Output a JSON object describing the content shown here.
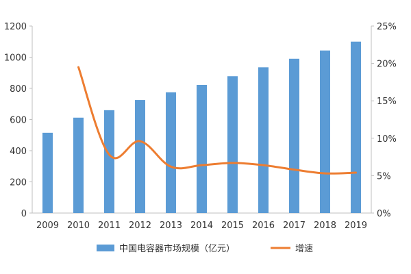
{
  "chart_data": {
    "type": "bar+line",
    "categories": [
      "2009",
      "2010",
      "2011",
      "2012",
      "2013",
      "2014",
      "2015",
      "2016",
      "2017",
      "2018",
      "2019"
    ],
    "series": [
      {
        "name": "中国电容器市场规模（亿元）",
        "type": "bar",
        "axis": "left",
        "color": "#5B9BD5",
        "values": [
          515,
          612,
          660,
          725,
          775,
          822,
          878,
          935,
          990,
          1043,
          1100
        ]
      },
      {
        "name": "增速",
        "type": "line",
        "axis": "right",
        "color": "#ED7D31",
        "values": [
          null,
          19.5,
          7.8,
          9.6,
          6.2,
          6.4,
          6.7,
          6.4,
          5.8,
          5.3,
          5.4
        ]
      }
    ],
    "y_left": {
      "min": 0,
      "max": 1200,
      "ticks": [
        0,
        200,
        400,
        600,
        800,
        1000,
        1200
      ],
      "tick_labels": [
        "0",
        "200",
        "400",
        "600",
        "800",
        "1000",
        "1200"
      ]
    },
    "y_right": {
      "min": 0,
      "max": 25,
      "ticks": [
        0,
        5,
        10,
        15,
        20,
        25
      ],
      "tick_labels": [
        "0%",
        "5%",
        "10%",
        "15%",
        "20%",
        "25%"
      ]
    },
    "title": "",
    "xlabel": "",
    "ylabel": "",
    "grid": false,
    "legend_position": "bottom"
  }
}
